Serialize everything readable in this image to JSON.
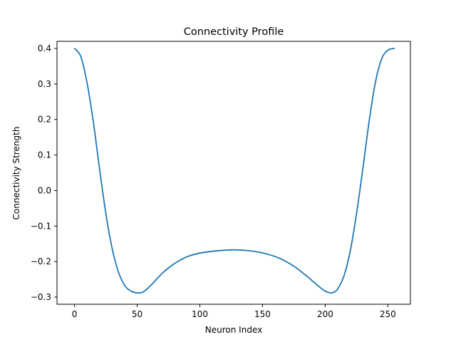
{
  "chart_data": {
    "type": "line",
    "title": "Connectivity Profile",
    "xlabel": "Neuron Index",
    "ylabel": "Connectivity Strength",
    "xlim": [
      -14,
      268
    ],
    "ylim": [
      -0.32,
      0.42
    ],
    "xticks": [
      0,
      50,
      100,
      150,
      200,
      250
    ],
    "xtick_labels": [
      "0",
      "50",
      "100",
      "150",
      "200",
      "250"
    ],
    "yticks": [
      -0.3,
      -0.2,
      -0.1,
      0.0,
      0.1,
      0.2,
      0.3,
      0.4
    ],
    "ytick_labels": [
      "−0.3",
      "−0.2",
      "−0.1",
      "0.0",
      "0.1",
      "0.2",
      "0.3",
      "0.4"
    ],
    "grid": false,
    "legend": "none",
    "series": [
      {
        "color": "#1f77b4",
        "x": [
          0,
          5,
          10,
          15,
          20,
          25,
          30,
          35,
          40,
          45,
          50,
          52,
          55,
          60,
          70,
          80,
          90,
          100,
          110,
          120,
          127,
          135,
          145,
          155,
          165,
          175,
          185,
          195,
          200,
          204,
          207,
          210,
          215,
          220,
          225,
          230,
          235,
          240,
          245,
          250,
          255
        ],
        "y": [
          0.4,
          0.377,
          0.303,
          0.193,
          0.06,
          -0.065,
          -0.163,
          -0.229,
          -0.267,
          -0.283,
          -0.288,
          -0.288,
          -0.285,
          -0.27,
          -0.233,
          -0.205,
          -0.186,
          -0.176,
          -0.171,
          -0.168,
          -0.167,
          -0.168,
          -0.172,
          -0.18,
          -0.193,
          -0.213,
          -0.24,
          -0.27,
          -0.283,
          -0.288,
          -0.286,
          -0.277,
          -0.24,
          -0.17,
          -0.065,
          0.06,
          0.193,
          0.303,
          0.37,
          0.395,
          0.4
        ]
      }
    ]
  }
}
